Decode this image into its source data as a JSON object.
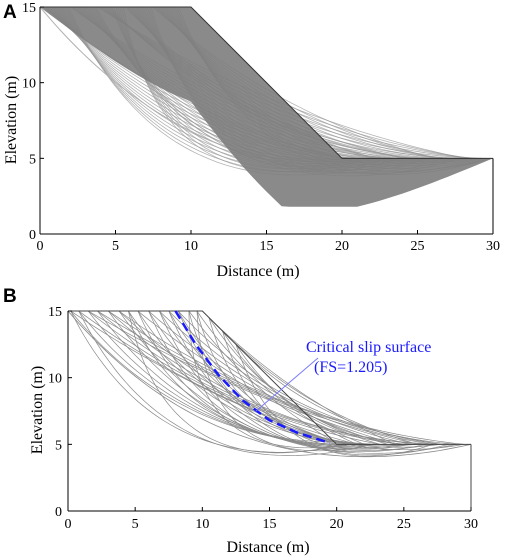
{
  "chart_data": [
    {
      "panel_label": "A",
      "type": "line",
      "xlabel": "Distance (m)",
      "ylabel": "Elevation (m)",
      "xlim": [
        0,
        30
      ],
      "ylim": [
        0,
        15
      ],
      "x_ticks": [
        "0",
        "5",
        "10",
        "15",
        "20",
        "25",
        "30"
      ],
      "y_ticks": [
        "0",
        "5",
        "10",
        "15"
      ],
      "slope_profile": [
        [
          0,
          15
        ],
        [
          10,
          15
        ],
        [
          20,
          5
        ],
        [
          30,
          5
        ]
      ],
      "trial_slip_surfaces": {
        "description_count": "dense",
        "entry_x_range": [
          0,
          10
        ],
        "exit_x_range": [
          20,
          30
        ],
        "lowest_elevation": 0,
        "color": "#808080"
      },
      "grid": false
    },
    {
      "panel_label": "B",
      "type": "line",
      "xlabel": "Distance (m)",
      "ylabel": "Elevation (m)",
      "xlim": [
        0,
        30
      ],
      "ylim": [
        0,
        15
      ],
      "x_ticks": [
        "0",
        "5",
        "10",
        "15",
        "20",
        "25",
        "30"
      ],
      "y_ticks": [
        "0",
        "5",
        "10",
        "15"
      ],
      "slope_profile": [
        [
          0,
          15
        ],
        [
          10,
          15
        ],
        [
          20,
          5
        ],
        [
          30,
          5
        ]
      ],
      "trial_slip_surfaces": {
        "description_count": "sparse",
        "color": "#8a8a8a"
      },
      "critical_slip_surface": {
        "points": [
          [
            8,
            15
          ],
          [
            9.5,
            12.5
          ],
          [
            11.2,
            10.2
          ],
          [
            13,
            8.3
          ],
          [
            15,
            6.8
          ],
          [
            17,
            5.9
          ],
          [
            19.5,
            5.1
          ]
        ],
        "color": "#1a1aff",
        "style": "dashed"
      },
      "annotation": {
        "line1": "Critical slip surface",
        "line2": "(FS=1.205)",
        "arrow_target": [
          14,
          7.5
        ]
      },
      "grid": false
    }
  ],
  "colors": {
    "axis": "#000000",
    "slip_surfaces": "#808080",
    "critical": "#1a1aff"
  }
}
